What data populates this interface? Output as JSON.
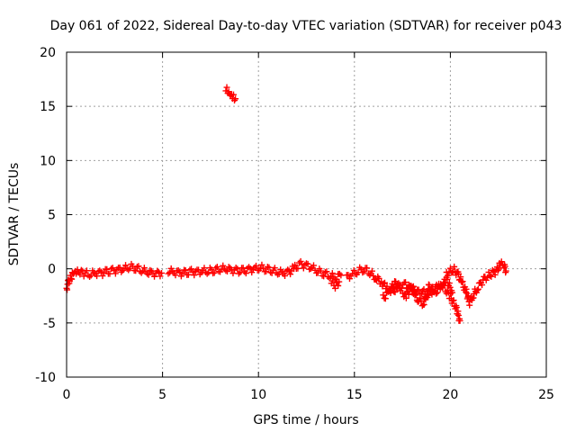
{
  "chart_data": {
    "type": "scatter",
    "title": "Day 061 of 2022, Sidereal Day-to-day VTEC variation (SDTVAR) for receiver p043",
    "xlabel": "GPS time / hours",
    "ylabel": "SDTVAR / TECUs",
    "xlim": [
      0,
      25
    ],
    "ylim": [
      -10,
      20
    ],
    "xticks": [
      0,
      5,
      10,
      15,
      20,
      25
    ],
    "yticks": [
      -10,
      -5,
      0,
      5,
      10,
      15,
      20
    ],
    "grid": true,
    "marker": "plus",
    "color": "#ff0000",
    "segments": [
      {
        "x": [
          0.0,
          0.1,
          0.2,
          0.3,
          0.4,
          0.5,
          0.7,
          0.9,
          1.2,
          1.5,
          1.8,
          2.1,
          2.4,
          2.7,
          3.0,
          3.3,
          3.6,
          3.9,
          4.2,
          4.5,
          4.8,
          4.95
        ],
        "y": [
          -1.8,
          -1.2,
          -0.9,
          -0.6,
          -0.5,
          -0.4,
          -0.3,
          -0.4,
          -0.5,
          -0.4,
          -0.4,
          -0.3,
          -0.2,
          -0.1,
          0.0,
          0.2,
          0.1,
          -0.1,
          -0.3,
          -0.4,
          -0.5,
          -0.4
        ]
      },
      {
        "x": [
          5.3,
          5.6,
          5.9,
          6.2,
          6.5,
          6.8,
          7.1,
          7.4,
          7.7,
          8.0,
          8.3,
          8.6,
          8.9,
          9.2,
          9.5,
          9.8,
          10.1,
          10.4,
          10.7,
          11.0,
          11.3,
          11.6,
          11.9,
          12.2,
          12.5,
          12.8,
          13.1,
          13.4,
          13.7,
          14.0,
          14.3
        ],
        "y": [
          -0.2,
          -0.3,
          -0.4,
          -0.4,
          -0.3,
          -0.3,
          -0.2,
          -0.2,
          -0.1,
          0.0,
          0.0,
          -0.1,
          -0.2,
          -0.2,
          -0.1,
          0.0,
          0.1,
          0.0,
          -0.1,
          -0.3,
          -0.4,
          -0.3,
          0.1,
          0.4,
          0.3,
          0.1,
          -0.2,
          -0.4,
          -0.6,
          -0.8,
          -0.6
        ]
      },
      {
        "x": [
          8.3,
          8.4,
          8.5,
          8.6,
          8.7,
          8.8
        ],
        "y": [
          16.7,
          16.5,
          16.3,
          16.1,
          15.9,
          15.7
        ]
      },
      {
        "x": [
          13.8,
          14.0,
          14.2
        ],
        "y": [
          -1.3,
          -1.6,
          -1.2
        ]
      },
      {
        "x": [
          14.6,
          14.9,
          15.2,
          15.5,
          15.8,
          16.1,
          16.4,
          16.7,
          17.0,
          17.3,
          17.6,
          17.9,
          18.2,
          18.5,
          18.8,
          19.1,
          19.4,
          19.7,
          20.0,
          20.3,
          20.5
        ],
        "y": [
          -0.8,
          -0.5,
          -0.2,
          0.0,
          -0.3,
          -0.8,
          -1.2,
          -1.8,
          -2.1,
          -1.6,
          -1.4,
          -1.8,
          -2.2,
          -2.0,
          -2.4,
          -2.0,
          -1.5,
          -1.8,
          -2.6,
          -3.6,
          -4.8
        ]
      },
      {
        "x": [
          16.5,
          16.8,
          17.1,
          17.4,
          17.7,
          18.0,
          18.3,
          18.6,
          18.9,
          19.2,
          19.5,
          19.8,
          20.1
        ],
        "y": [
          -2.7,
          -2.2,
          -1.3,
          -2.0,
          -2.5,
          -1.6,
          -2.8,
          -3.2,
          -1.6,
          -2.2,
          -1.7,
          -1.0,
          -2.2
        ]
      },
      {
        "x": [
          19.8,
          20.0,
          20.2,
          20.4,
          20.6,
          20.8,
          21.0,
          21.2,
          21.4,
          21.6,
          21.8,
          22.0,
          22.2,
          22.4,
          22.6,
          22.8,
          22.9
        ],
        "y": [
          -0.4,
          -0.2,
          -0.1,
          -0.5,
          -1.3,
          -2.0,
          -3.1,
          -2.4,
          -1.8,
          -1.3,
          -0.9,
          -0.6,
          -0.4,
          -0.2,
          0.4,
          0.3,
          -0.2
        ]
      }
    ]
  }
}
